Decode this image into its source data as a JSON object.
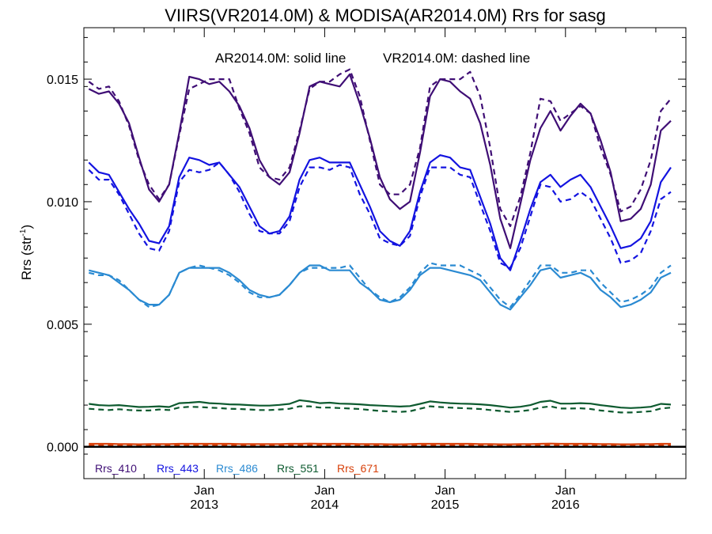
{
  "chart_data": {
    "type": "line",
    "title": "VIIRS(VR2014.0M) & MODISA(AR2014.0M)  Rrs for sasg",
    "annotation": {
      "solid": "AR2014.0M: solid line",
      "dashed": "VR2014.0M: dashed line"
    },
    "ylabel": "Rrs (str",
    "ylabel_sup": "-1",
    "ylabel_close": ")",
    "ylim": [
      -0.0013,
      0.0171
    ],
    "yticks": [
      0.0,
      0.005,
      0.01,
      0.015
    ],
    "ytick_labels": [
      "0.000",
      "0.005",
      "0.010",
      "0.015"
    ],
    "x_start": "2012-01",
    "x_end": "2016-12",
    "xticks": [
      {
        "month": "Jan",
        "year": "2013",
        "index": 12
      },
      {
        "month": "Jan",
        "year": "2014",
        "index": 24
      },
      {
        "month": "Jan",
        "year": "2015",
        "index": 36
      },
      {
        "month": "Jan",
        "year": "2016",
        "index": 48
      }
    ],
    "grid": false,
    "legend_placement": "bottom-left",
    "series": [
      {
        "name": "Rrs_410",
        "color": "#3f0e75",
        "solid": [
          0.0146,
          0.0144,
          0.0145,
          0.014,
          0.0132,
          0.0118,
          0.0105,
          0.01,
          0.0107,
          0.0128,
          0.0151,
          0.015,
          0.0148,
          0.0149,
          0.0145,
          0.0139,
          0.013,
          0.0117,
          0.011,
          0.0107,
          0.0112,
          0.0128,
          0.0147,
          0.0149,
          0.0148,
          0.0147,
          0.0152,
          0.014,
          0.0126,
          0.011,
          0.0101,
          0.0097,
          0.01,
          0.012,
          0.0143,
          0.015,
          0.0149,
          0.0145,
          0.0142,
          0.0132,
          0.0115,
          0.0093,
          0.0081,
          0.0099,
          0.0117,
          0.013,
          0.0137,
          0.0129,
          0.0135,
          0.014,
          0.0136,
          0.0125,
          0.0112,
          0.0092,
          0.0093,
          0.0097,
          0.0107,
          0.0129,
          0.0133
        ],
        "dashed": [
          0.0149,
          0.0146,
          0.0147,
          0.0141,
          0.0131,
          0.0117,
          0.0107,
          0.0101,
          0.0107,
          0.0127,
          0.0146,
          0.0148,
          0.015,
          0.015,
          0.015,
          0.0138,
          0.0128,
          0.0114,
          0.011,
          0.0109,
          0.0114,
          0.0129,
          0.0146,
          0.0149,
          0.0149,
          0.0152,
          0.0154,
          0.0143,
          0.0125,
          0.0107,
          0.0103,
          0.0103,
          0.0107,
          0.0122,
          0.0147,
          0.015,
          0.015,
          0.015,
          0.0153,
          0.0143,
          0.0122,
          0.0097,
          0.009,
          0.0102,
          0.012,
          0.0142,
          0.0141,
          0.0133,
          0.0136,
          0.0139,
          0.0136,
          0.0122,
          0.0111,
          0.0096,
          0.0098,
          0.0105,
          0.0117,
          0.0137,
          0.0142
        ]
      },
      {
        "name": "Rrs_443",
        "color": "#1313e0",
        "solid": [
          0.0116,
          0.0112,
          0.0111,
          0.0104,
          0.0097,
          0.0091,
          0.0084,
          0.0083,
          0.009,
          0.011,
          0.0118,
          0.0117,
          0.0115,
          0.0116,
          0.0111,
          0.0106,
          0.0098,
          0.009,
          0.0087,
          0.0088,
          0.0094,
          0.0109,
          0.0117,
          0.0118,
          0.0116,
          0.0116,
          0.0116,
          0.0107,
          0.0098,
          0.0088,
          0.0084,
          0.0082,
          0.0088,
          0.0104,
          0.0116,
          0.0119,
          0.0118,
          0.0114,
          0.0113,
          0.0102,
          0.0091,
          0.0077,
          0.0072,
          0.0084,
          0.0097,
          0.0108,
          0.0111,
          0.0106,
          0.0109,
          0.0111,
          0.0106,
          0.0098,
          0.009,
          0.0081,
          0.0082,
          0.0085,
          0.0092,
          0.0108,
          0.0114
        ],
        "dashed": [
          0.0113,
          0.0109,
          0.0109,
          0.0103,
          0.0095,
          0.0087,
          0.0081,
          0.008,
          0.0088,
          0.0108,
          0.0113,
          0.0112,
          0.0113,
          0.0116,
          0.0111,
          0.0104,
          0.0095,
          0.0088,
          0.0087,
          0.0087,
          0.0092,
          0.0106,
          0.0114,
          0.0114,
          0.0113,
          0.0115,
          0.0114,
          0.0103,
          0.0095,
          0.0085,
          0.0083,
          0.0082,
          0.0086,
          0.0102,
          0.0114,
          0.0114,
          0.0114,
          0.0111,
          0.011,
          0.0099,
          0.0088,
          0.0075,
          0.0073,
          0.0081,
          0.0094,
          0.0107,
          0.0106,
          0.01,
          0.0101,
          0.0104,
          0.0101,
          0.0093,
          0.0085,
          0.0075,
          0.0076,
          0.0079,
          0.0088,
          0.0101,
          0.0104
        ]
      },
      {
        "name": "Rrs_486",
        "color": "#2a8ad2",
        "solid": [
          0.0072,
          0.0071,
          0.007,
          0.0067,
          0.0064,
          0.006,
          0.0058,
          0.0058,
          0.0062,
          0.0071,
          0.0073,
          0.0073,
          0.0073,
          0.0073,
          0.0071,
          0.0068,
          0.0064,
          0.0062,
          0.0061,
          0.0062,
          0.0066,
          0.0071,
          0.0074,
          0.0074,
          0.0072,
          0.0072,
          0.0072,
          0.0067,
          0.0064,
          0.006,
          0.0059,
          0.006,
          0.0064,
          0.007,
          0.0073,
          0.0073,
          0.0072,
          0.0071,
          0.007,
          0.0068,
          0.0063,
          0.0058,
          0.0056,
          0.0061,
          0.0066,
          0.0072,
          0.0073,
          0.0069,
          0.007,
          0.0071,
          0.0069,
          0.0064,
          0.0061,
          0.0057,
          0.0058,
          0.006,
          0.0063,
          0.0069,
          0.0071
        ],
        "dashed": [
          0.0071,
          0.007,
          0.007,
          0.0068,
          0.0064,
          0.006,
          0.0057,
          0.0058,
          0.0062,
          0.0071,
          0.0073,
          0.0074,
          0.0073,
          0.0072,
          0.007,
          0.0067,
          0.0063,
          0.0061,
          0.0061,
          0.0062,
          0.0066,
          0.0071,
          0.0073,
          0.0073,
          0.0073,
          0.0073,
          0.0074,
          0.0069,
          0.0064,
          0.0061,
          0.0059,
          0.0061,
          0.0065,
          0.0071,
          0.0075,
          0.0074,
          0.0074,
          0.0074,
          0.0072,
          0.007,
          0.0065,
          0.006,
          0.0057,
          0.0062,
          0.0068,
          0.0074,
          0.0074,
          0.0071,
          0.0071,
          0.0072,
          0.0072,
          0.0067,
          0.0063,
          0.0059,
          0.006,
          0.0062,
          0.0065,
          0.0071,
          0.0074
        ]
      },
      {
        "name": "Rrs_551",
        "color": "#0d5a2f",
        "solid": [
          0.00175,
          0.0017,
          0.00168,
          0.0017,
          0.00166,
          0.00162,
          0.00163,
          0.00165,
          0.00162,
          0.00178,
          0.0018,
          0.00183,
          0.00178,
          0.00176,
          0.00173,
          0.00172,
          0.0017,
          0.00168,
          0.00168,
          0.00171,
          0.00175,
          0.0019,
          0.00185,
          0.00178,
          0.0018,
          0.00176,
          0.00175,
          0.00173,
          0.0017,
          0.00168,
          0.00166,
          0.00164,
          0.00166,
          0.00175,
          0.00185,
          0.00181,
          0.00178,
          0.00176,
          0.00175,
          0.00173,
          0.0017,
          0.00165,
          0.0016,
          0.00163,
          0.0017,
          0.00183,
          0.00188,
          0.00176,
          0.00176,
          0.00178,
          0.00176,
          0.0017,
          0.00165,
          0.0016,
          0.00158,
          0.0016,
          0.00163,
          0.00175,
          0.00172
        ],
        "dashed": [
          0.00155,
          0.00152,
          0.0015,
          0.00153,
          0.0015,
          0.00148,
          0.00148,
          0.00152,
          0.0015,
          0.0016,
          0.00163,
          0.00162,
          0.0016,
          0.00158,
          0.00155,
          0.00154,
          0.00152,
          0.0015,
          0.0015,
          0.00152,
          0.00155,
          0.00165,
          0.00165,
          0.0016,
          0.0016,
          0.00158,
          0.00156,
          0.00154,
          0.0015,
          0.00146,
          0.00144,
          0.00142,
          0.00145,
          0.00155,
          0.00165,
          0.00162,
          0.0016,
          0.00158,
          0.00156,
          0.00154,
          0.0015,
          0.00146,
          0.00142,
          0.00145,
          0.0015,
          0.0016,
          0.00165,
          0.00156,
          0.00156,
          0.00157,
          0.00154,
          0.00148,
          0.00144,
          0.0014,
          0.0014,
          0.00142,
          0.00145,
          0.00156,
          0.0016
        ]
      },
      {
        "name": "Rrs_671",
        "color": "#d8410b",
        "solid": [
          0.00012,
          0.00012,
          0.00012,
          0.00011,
          0.00011,
          0.0001,
          0.00011,
          0.00011,
          0.00011,
          0.00012,
          0.00012,
          0.00012,
          0.00012,
          0.00012,
          0.00012,
          0.00011,
          0.00011,
          0.00011,
          0.00011,
          0.00011,
          0.00012,
          0.00012,
          0.00013,
          0.00012,
          0.00012,
          0.00012,
          0.00012,
          0.00011,
          0.00011,
          0.00011,
          0.0001,
          0.0001,
          0.00011,
          0.00012,
          0.00012,
          0.00012,
          0.00012,
          0.00012,
          0.00012,
          0.00011,
          0.00011,
          0.0001,
          0.0001,
          0.00011,
          0.00011,
          0.00012,
          0.00013,
          0.00012,
          0.00012,
          0.00012,
          0.00012,
          0.00011,
          0.00011,
          0.0001,
          0.0001,
          0.00011,
          0.00011,
          0.00012,
          0.00012
        ],
        "dashed": [
          7e-05,
          7e-05,
          7e-05,
          6e-05,
          6e-05,
          6e-05,
          6e-05,
          6e-05,
          6e-05,
          7e-05,
          7e-05,
          7e-05,
          7e-05,
          7e-05,
          7e-05,
          6e-05,
          6e-05,
          6e-05,
          6e-05,
          6e-05,
          7e-05,
          7e-05,
          8e-05,
          7e-05,
          7e-05,
          7e-05,
          7e-05,
          6e-05,
          6e-05,
          6e-05,
          5e-05,
          5e-05,
          6e-05,
          7e-05,
          7e-05,
          7e-05,
          7e-05,
          7e-05,
          7e-05,
          6e-05,
          6e-05,
          5e-05,
          5e-05,
          6e-05,
          6e-05,
          7e-05,
          8e-05,
          7e-05,
          7e-05,
          7e-05,
          7e-05,
          6e-05,
          6e-05,
          5e-05,
          5e-05,
          6e-05,
          6e-05,
          7e-05,
          7e-05
        ]
      }
    ]
  }
}
